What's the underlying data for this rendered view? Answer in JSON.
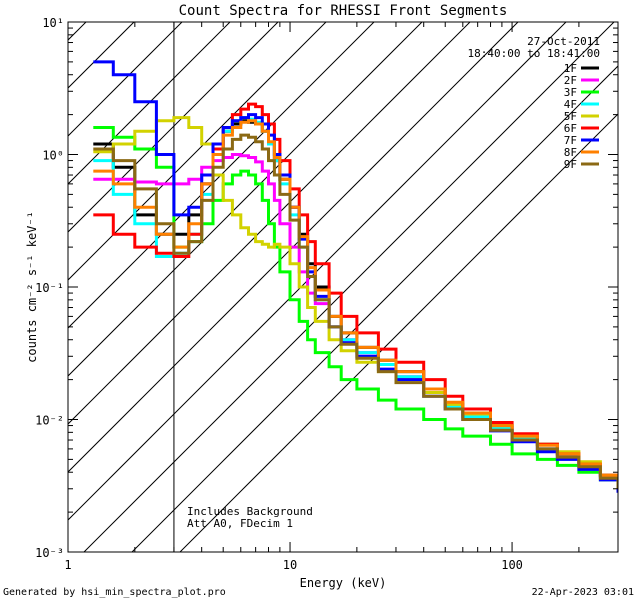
{
  "chart_data": {
    "type": "line",
    "title": "Count Spectra for RHESSI Front Segments",
    "xlabel": "Energy (keV)",
    "ylabel": "counts cm⁻² s⁻¹ keV⁻¹",
    "xscale": "log",
    "yscale": "log",
    "xlim": [
      1,
      300
    ],
    "ylim": [
      0.001,
      10
    ],
    "x_tick_labels": [
      "1",
      "10",
      "100"
    ],
    "y_tick_labels": [
      "10⁻³",
      "10⁻²",
      "10⁻¹",
      "10⁰",
      "10¹"
    ],
    "y_tick_values": [
      0.001,
      0.01,
      0.1,
      1,
      10
    ],
    "attenuator_cutoff_kev": 3,
    "date": "27-Oct-2011",
    "time_range": "18:40:00 to 18:41:00",
    "notes": [
      "Includes Background",
      "Att A0, FDecim 1"
    ],
    "footer_left": "Generated by hsi_min_spectra_plot.pro",
    "footer_right": "22-Apr-2023 03:01",
    "series": [
      {
        "name": "1F",
        "color": "#000000",
        "x": [
          1.3,
          1.6,
          2.0,
          2.5,
          3.0,
          3.5,
          4.0,
          4.5,
          5.0,
          5.5,
          6.0,
          6.5,
          7.0,
          7.5,
          8.0,
          8.5,
          9.0,
          10.0,
          11.0,
          12.0,
          13.0,
          15.0,
          17.0,
          20.0,
          25.0,
          30.0,
          40.0,
          50.0,
          60.0,
          80.0,
          100.0,
          130.0,
          160.0,
          200.0,
          250.0,
          300.0
        ],
        "y": [
          1.2,
          0.8,
          0.35,
          0.25,
          0.25,
          0.35,
          0.6,
          1.1,
          1.5,
          1.7,
          1.8,
          1.75,
          1.7,
          1.5,
          1.2,
          0.9,
          0.65,
          0.4,
          0.25,
          0.15,
          0.1,
          0.06,
          0.045,
          0.035,
          0.028,
          0.023,
          0.017,
          0.013,
          0.011,
          0.009,
          0.0075,
          0.0065,
          0.0055,
          0.0045,
          0.0038,
          0.003
        ]
      },
      {
        "name": "2F",
        "color": "#ff00ff",
        "x": [
          1.3,
          1.6,
          2.0,
          2.5,
          3.0,
          3.5,
          4.0,
          4.5,
          5.0,
          5.5,
          6.0,
          6.5,
          7.0,
          7.5,
          8.0,
          8.5,
          9.0,
          10.0,
          11.0,
          12.0,
          13.0,
          15.0,
          17.0,
          20.0,
          25.0,
          30.0,
          40.0,
          50.0,
          60.0,
          80.0,
          100.0,
          130.0,
          160.0,
          200.0,
          250.0,
          300.0
        ],
        "y": [
          0.65,
          0.65,
          0.62,
          0.6,
          0.6,
          0.65,
          0.8,
          0.9,
          0.95,
          1.0,
          0.98,
          0.95,
          0.88,
          0.75,
          0.6,
          0.45,
          0.3,
          0.2,
          0.13,
          0.09,
          0.075,
          0.05,
          0.04,
          0.032,
          0.026,
          0.021,
          0.016,
          0.0125,
          0.0105,
          0.0087,
          0.0072,
          0.006,
          0.0052,
          0.0044,
          0.0037,
          0.003
        ]
      },
      {
        "name": "3F",
        "color": "#00ff00",
        "x": [
          1.3,
          1.6,
          2.0,
          2.5,
          3.0,
          3.5,
          4.0,
          4.5,
          5.0,
          5.5,
          6.0,
          6.5,
          7.0,
          7.5,
          8.0,
          8.5,
          9.0,
          10.0,
          11.0,
          12.0,
          13.0,
          15.0,
          17.0,
          20.0,
          25.0,
          30.0,
          40.0,
          50.0,
          60.0,
          80.0,
          100.0,
          130.0,
          160.0,
          200.0,
          250.0,
          300.0
        ],
        "y": [
          1.6,
          1.35,
          1.1,
          0.8,
          0.2,
          0.22,
          0.3,
          0.45,
          0.6,
          0.7,
          0.75,
          0.7,
          0.6,
          0.45,
          0.3,
          0.2,
          0.13,
          0.08,
          0.055,
          0.04,
          0.032,
          0.025,
          0.02,
          0.017,
          0.014,
          0.012,
          0.01,
          0.0085,
          0.0075,
          0.0065,
          0.0055,
          0.005,
          0.0045,
          0.004,
          0.0035,
          0.003
        ]
      },
      {
        "name": "4F",
        "color": "#00ffff",
        "x": [
          1.3,
          1.6,
          2.0,
          2.5,
          3.0,
          3.5,
          4.0,
          4.5,
          5.0,
          5.5,
          6.0,
          6.5,
          7.0,
          7.5,
          8.0,
          8.5,
          9.0,
          10.0,
          11.0,
          12.0,
          13.0,
          15.0,
          17.0,
          20.0,
          25.0,
          30.0,
          40.0,
          50.0,
          60.0,
          80.0,
          100.0,
          130.0,
          160.0,
          200.0,
          250.0,
          300.0
        ],
        "y": [
          0.9,
          0.5,
          0.3,
          0.17,
          0.18,
          0.25,
          0.5,
          1.0,
          1.5,
          1.8,
          1.9,
          1.85,
          1.75,
          1.5,
          1.2,
          0.9,
          0.6,
          0.35,
          0.2,
          0.12,
          0.08,
          0.05,
          0.04,
          0.032,
          0.026,
          0.021,
          0.016,
          0.0125,
          0.0105,
          0.0087,
          0.0072,
          0.006,
          0.0052,
          0.0044,
          0.0037,
          0.003
        ]
      },
      {
        "name": "5F",
        "color": "#d2d200",
        "x": [
          1.3,
          1.6,
          2.0,
          2.5,
          3.0,
          3.5,
          4.0,
          4.5,
          5.0,
          5.5,
          6.0,
          6.5,
          7.0,
          7.5,
          8.0,
          8.5,
          9.0,
          10.0,
          11.0,
          12.0,
          13.0,
          15.0,
          17.0,
          20.0,
          25.0,
          30.0,
          40.0,
          50.0,
          60.0,
          80.0,
          100.0,
          130.0,
          160.0,
          200.0,
          250.0,
          300.0
        ],
        "y": [
          1.05,
          1.2,
          1.5,
          1.8,
          1.9,
          1.6,
          1.2,
          0.7,
          0.45,
          0.35,
          0.28,
          0.25,
          0.22,
          0.21,
          0.2,
          0.21,
          0.2,
          0.15,
          0.1,
          0.07,
          0.055,
          0.04,
          0.033,
          0.027,
          0.023,
          0.02,
          0.016,
          0.013,
          0.011,
          0.009,
          0.0075,
          0.0065,
          0.0057,
          0.0048,
          0.0038,
          0.003
        ]
      },
      {
        "name": "6F",
        "color": "#ff0000",
        "x": [
          1.3,
          1.6,
          2.0,
          2.5,
          3.0,
          3.5,
          4.0,
          4.5,
          5.0,
          5.5,
          6.0,
          6.5,
          7.0,
          7.5,
          8.0,
          8.5,
          9.0,
          10.0,
          11.0,
          12.0,
          13.0,
          15.0,
          17.0,
          20.0,
          25.0,
          30.0,
          40.0,
          50.0,
          60.0,
          80.0,
          100.0,
          130.0,
          160.0,
          200.0,
          250.0,
          300.0
        ],
        "y": [
          0.35,
          0.25,
          0.2,
          0.18,
          0.17,
          0.25,
          0.6,
          1.1,
          1.6,
          2.0,
          2.2,
          2.4,
          2.3,
          2.0,
          1.7,
          1.3,
          0.9,
          0.55,
          0.35,
          0.22,
          0.15,
          0.09,
          0.06,
          0.045,
          0.034,
          0.027,
          0.02,
          0.015,
          0.012,
          0.0095,
          0.0078,
          0.0065,
          0.0055,
          0.0046,
          0.0038,
          0.003
        ]
      },
      {
        "name": "7F",
        "color": "#0000ff",
        "x": [
          1.3,
          1.6,
          2.0,
          2.5,
          3.0,
          3.5,
          4.0,
          4.5,
          5.0,
          5.5,
          6.0,
          6.5,
          7.0,
          7.5,
          8.0,
          8.5,
          9.0,
          10.0,
          11.0,
          12.0,
          13.0,
          15.0,
          17.0,
          20.0,
          25.0,
          30.0,
          40.0,
          50.0,
          60.0,
          80.0,
          100.0,
          130.0,
          160.0,
          200.0,
          250.0,
          300.0
        ],
        "y": [
          5.0,
          4.0,
          2.5,
          1.0,
          0.35,
          0.4,
          0.7,
          1.2,
          1.6,
          1.8,
          1.9,
          2.0,
          1.9,
          1.7,
          1.4,
          1.0,
          0.7,
          0.4,
          0.23,
          0.13,
          0.085,
          0.05,
          0.038,
          0.03,
          0.024,
          0.02,
          0.015,
          0.012,
          0.01,
          0.0082,
          0.0068,
          0.0057,
          0.005,
          0.0042,
          0.0035,
          0.0028
        ]
      },
      {
        "name": "8F",
        "color": "#ff8000",
        "x": [
          1.3,
          1.6,
          2.0,
          2.5,
          3.0,
          3.5,
          4.0,
          4.5,
          5.0,
          5.5,
          6.0,
          6.5,
          7.0,
          7.5,
          8.0,
          8.5,
          9.0,
          10.0,
          11.0,
          12.0,
          13.0,
          15.0,
          17.0,
          20.0,
          25.0,
          30.0,
          40.0,
          50.0,
          60.0,
          80.0,
          100.0,
          130.0,
          160.0,
          200.0,
          250.0,
          300.0
        ],
        "y": [
          0.75,
          0.6,
          0.4,
          0.25,
          0.2,
          0.3,
          0.6,
          1.0,
          1.4,
          1.6,
          1.75,
          1.8,
          1.7,
          1.5,
          1.25,
          0.95,
          0.65,
          0.4,
          0.24,
          0.14,
          0.095,
          0.06,
          0.045,
          0.035,
          0.028,
          0.023,
          0.017,
          0.0135,
          0.0112,
          0.009,
          0.0075,
          0.0064,
          0.0055,
          0.0046,
          0.0038,
          0.0031
        ]
      },
      {
        "name": "9F",
        "color": "#8b6914",
        "x": [
          1.3,
          1.6,
          2.0,
          2.5,
          3.0,
          3.5,
          4.0,
          4.5,
          5.0,
          5.5,
          6.0,
          6.5,
          7.0,
          7.5,
          8.0,
          8.5,
          9.0,
          10.0,
          11.0,
          12.0,
          13.0,
          15.0,
          17.0,
          20.0,
          25.0,
          30.0,
          40.0,
          50.0,
          60.0,
          80.0,
          100.0,
          130.0,
          160.0,
          200.0,
          250.0,
          300.0
        ],
        "y": [
          1.1,
          0.9,
          0.55,
          0.3,
          0.18,
          0.22,
          0.45,
          0.8,
          1.1,
          1.3,
          1.4,
          1.35,
          1.25,
          1.1,
          0.9,
          0.7,
          0.5,
          0.32,
          0.2,
          0.12,
          0.08,
          0.05,
          0.037,
          0.029,
          0.023,
          0.019,
          0.015,
          0.012,
          0.01,
          0.0083,
          0.007,
          0.006,
          0.0052,
          0.0044,
          0.0036,
          0.003
        ]
      }
    ]
  }
}
